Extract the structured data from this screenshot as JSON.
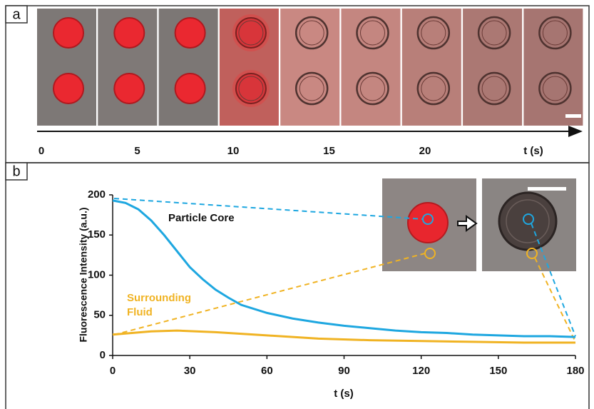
{
  "panel_a": {
    "label": "a",
    "xticks": [
      0,
      5,
      10,
      15,
      20
    ],
    "xlabel": "t (s)"
  },
  "chart_data": {
    "type": "line",
    "label": "b",
    "ylabel": "Fluorescence Intensity (a.u.)",
    "xlabel": "t (s)",
    "xlim": [
      0,
      180
    ],
    "ylim": [
      0,
      200
    ],
    "xticks": [
      0,
      30,
      60,
      90,
      120,
      150,
      180
    ],
    "yticks": [
      0,
      50,
      100,
      150,
      200
    ],
    "series": [
      {
        "name": "Particle Core",
        "color": "#1ea7e0",
        "x": [
          0,
          5,
          10,
          15,
          20,
          25,
          30,
          35,
          40,
          45,
          50,
          60,
          70,
          80,
          90,
          100,
          110,
          120,
          130,
          140,
          150,
          160,
          170,
          180
        ],
        "values": [
          193,
          190,
          182,
          168,
          150,
          130,
          110,
          95,
          82,
          72,
          63,
          53,
          46,
          41,
          37,
          34,
          31,
          29,
          28,
          26,
          25,
          24,
          24,
          23
        ]
      },
      {
        "name": "Surrounding Fluid",
        "color": "#f0b323",
        "x": [
          0,
          15,
          25,
          40,
          60,
          80,
          100,
          120,
          140,
          160,
          180
        ],
        "values": [
          26,
          30,
          31,
          29,
          25,
          21,
          19,
          18,
          17,
          16,
          16
        ]
      }
    ]
  }
}
